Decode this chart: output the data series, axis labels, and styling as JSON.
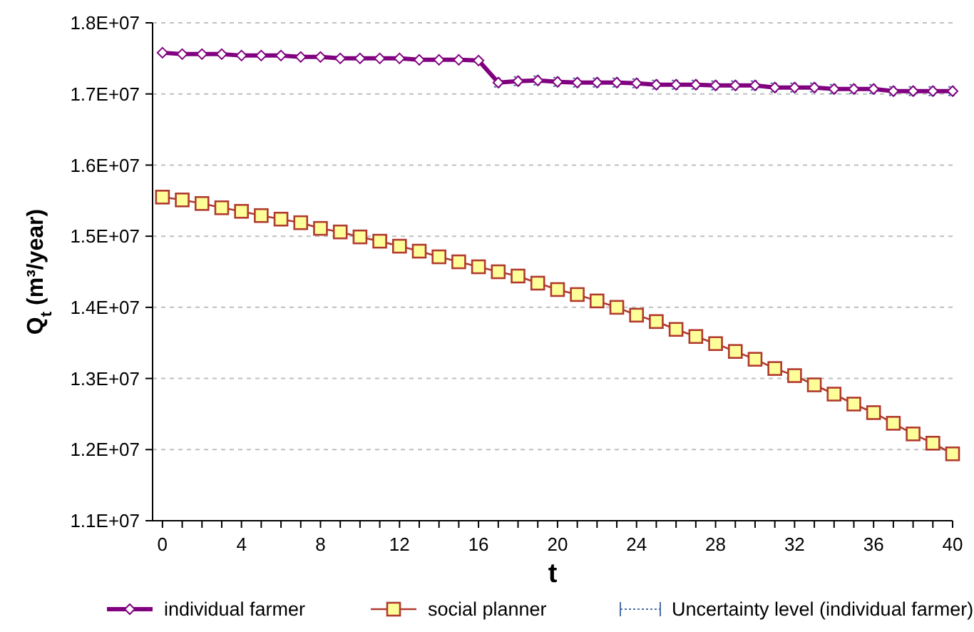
{
  "chart_data": {
    "type": "line",
    "xlabel": "t",
    "ylabel": "Q$_{t}$ (m³/year)",
    "x": [
      0,
      1,
      2,
      3,
      4,
      5,
      6,
      7,
      8,
      9,
      10,
      11,
      12,
      13,
      14,
      15,
      16,
      17,
      18,
      19,
      20,
      21,
      22,
      23,
      24,
      25,
      26,
      27,
      28,
      29,
      30,
      31,
      32,
      33,
      34,
      35,
      36,
      37,
      38,
      39,
      40
    ],
    "xlim": [
      -0.5,
      40
    ],
    "xticks": [
      0,
      {
        "value": 1,
        "label": null
      },
      {
        "value": 2,
        "label": null
      },
      {
        "value": 3,
        "label": null
      },
      4,
      {
        "value": 5,
        "label": null
      },
      {
        "value": 6,
        "label": null
      },
      {
        "value": 7,
        "label": null
      },
      8,
      {
        "value": 9,
        "label": null
      },
      {
        "value": 10,
        "label": null
      },
      {
        "value": 11,
        "label": null
      },
      12,
      {
        "value": 13,
        "label": null
      },
      {
        "value": 14,
        "label": null
      },
      {
        "value": 15,
        "label": null
      },
      16,
      {
        "value": 17,
        "label": null
      },
      {
        "value": 18,
        "label": null
      },
      {
        "value": 19,
        "label": null
      },
      20,
      {
        "value": 21,
        "label": null
      },
      {
        "value": 22,
        "label": null
      },
      {
        "value": 23,
        "label": null
      },
      24,
      {
        "value": 25,
        "label": null
      },
      {
        "value": 26,
        "label": null
      },
      {
        "value": 27,
        "label": null
      },
      28,
      {
        "value": 29,
        "label": null
      },
      {
        "value": 30,
        "label": null
      },
      {
        "value": 31,
        "label": null
      },
      32,
      {
        "value": 33,
        "label": null
      },
      {
        "value": 34,
        "label": null
      },
      {
        "value": 35,
        "label": null
      },
      36,
      {
        "value": 37,
        "label": null
      },
      {
        "value": 38,
        "label": null
      },
      {
        "value": 39,
        "label": null
      },
      40
    ],
    "ylim": [
      11000000,
      18000000
    ],
    "yticks": [
      {
        "value": 11000000,
        "label": "1.1E+07"
      },
      {
        "value": 12000000,
        "label": "1.2E+07"
      },
      {
        "value": 13000000,
        "label": "1.3E+07"
      },
      {
        "value": 14000000,
        "label": "1.4E+07"
      },
      {
        "value": 15000000,
        "label": "1.5E+07"
      },
      {
        "value": 16000000,
        "label": "1.6E+07"
      },
      {
        "value": 17000000,
        "label": "1.7E+07"
      },
      {
        "value": 18000000,
        "label": "1.8E+07"
      }
    ],
    "grid": "y",
    "legend": "bottom",
    "line_style": "solid",
    "annotations": [
      "Uncertainty level (individual farmer)"
    ],
    "series": [
      {
        "name": "individual farmer",
        "color": "#800080",
        "marker": "diamond",
        "values": [
          17580000,
          17560000,
          17560000,
          17560000,
          17540000,
          17540000,
          17540000,
          17520000,
          17520000,
          17500000,
          17500000,
          17500000,
          17500000,
          17480000,
          17480000,
          17480000,
          17470000,
          17160000,
          17180000,
          17190000,
          17170000,
          17160000,
          17160000,
          17160000,
          17150000,
          17130000,
          17130000,
          17130000,
          17120000,
          17120000,
          17120000,
          17090000,
          17090000,
          17090000,
          17070000,
          17070000,
          17070000,
          17040000,
          17040000,
          17040000,
          17040000
        ],
        "errors": [
          null,
          null,
          null,
          null,
          null,
          null,
          null,
          null,
          null,
          null,
          null,
          null,
          null,
          null,
          null,
          null,
          null,
          60000,
          60000,
          60000,
          60000,
          60000,
          60000,
          60000,
          60000,
          60000,
          60000,
          60000,
          60000,
          60000,
          60000,
          60000,
          60000,
          60000,
          60000,
          60000,
          60000,
          60000,
          60000,
          60000,
          60000
        ]
      },
      {
        "name": "social planner",
        "color": "#b03a2e",
        "marker": "square",
        "values": [
          15550000,
          15510000,
          15460000,
          15400000,
          15350000,
          15290000,
          15240000,
          15190000,
          15110000,
          15060000,
          14990000,
          14930000,
          14860000,
          14790000,
          14710000,
          14640000,
          14570000,
          14500000,
          14440000,
          14340000,
          14250000,
          14180000,
          14090000,
          14000000,
          13890000,
          13800000,
          13690000,
          13590000,
          13490000,
          13380000,
          13270000,
          13140000,
          13040000,
          12910000,
          12780000,
          12640000,
          12520000,
          12370000,
          12220000,
          12090000,
          11940000
        ]
      }
    ]
  }
}
